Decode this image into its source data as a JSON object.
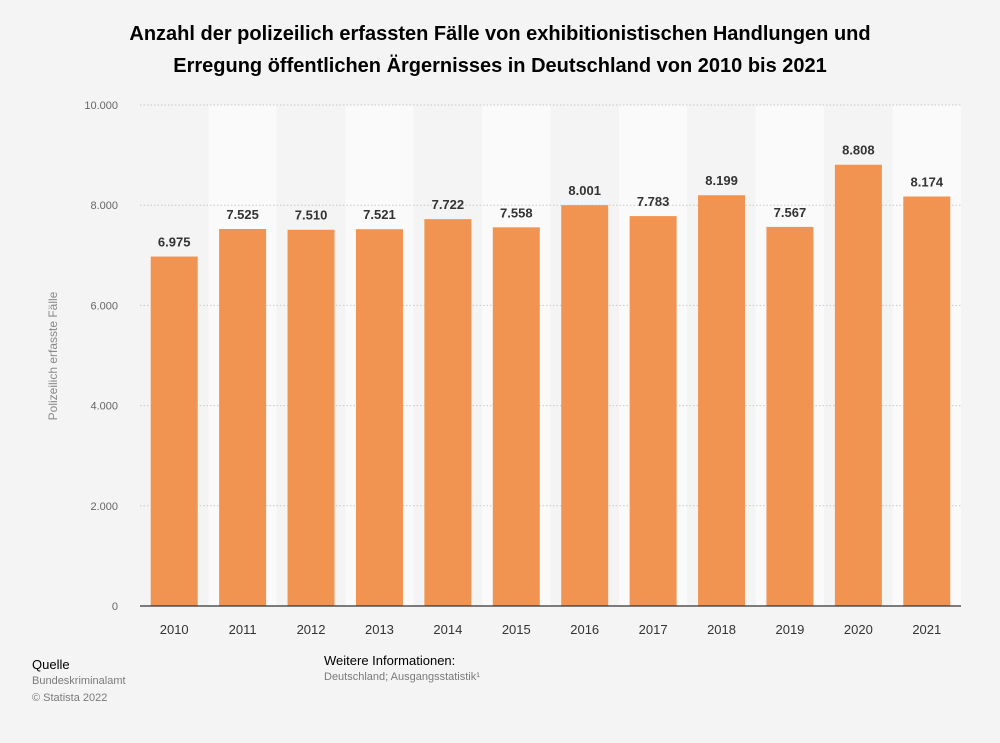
{
  "chart_data": {
    "type": "bar",
    "title": "Anzahl der polizeilich erfassten Fälle von exhibitionistischen Handlungen und Erregung öffentlichen Ärgernisses in Deutschland von 2010 bis 2021",
    "title_line1": "Anzahl der polizeilich erfassten Fälle von exhibitionistischen Handlungen und",
    "title_line2": "Erregung öffentlichen Ärgernisses in Deutschland von 2010 bis 2021",
    "xlabel": "",
    "ylabel": "Polizeilich erfasste Fälle",
    "ylim": [
      0,
      10000
    ],
    "yticks": [
      0,
      2000,
      4000,
      6000,
      8000,
      10000
    ],
    "ytick_labels": [
      "0",
      "2.000",
      "4.000",
      "6.000",
      "8.000",
      "10.000"
    ],
    "categories": [
      "2010",
      "2011",
      "2012",
      "2013",
      "2014",
      "2015",
      "2016",
      "2017",
      "2018",
      "2019",
      "2020",
      "2021"
    ],
    "values": [
      6975,
      7525,
      7510,
      7521,
      7722,
      7558,
      8001,
      7783,
      8199,
      7567,
      8808,
      8174
    ],
    "value_labels": [
      "6.975",
      "7.525",
      "7.510",
      "7.521",
      "7.722",
      "7.558",
      "8.001",
      "7.783",
      "8.199",
      "7.567",
      "8.808",
      "8.174"
    ],
    "grid": true,
    "legend": "none",
    "bar_color": "#f19452"
  },
  "source": {
    "heading": "Quelle",
    "line1": "Bundeskriminalamt",
    "line2": "© Statista 2022"
  },
  "info": {
    "heading": "Weitere Informationen:",
    "line1": "Deutschland; Ausgangsstatistik¹"
  }
}
